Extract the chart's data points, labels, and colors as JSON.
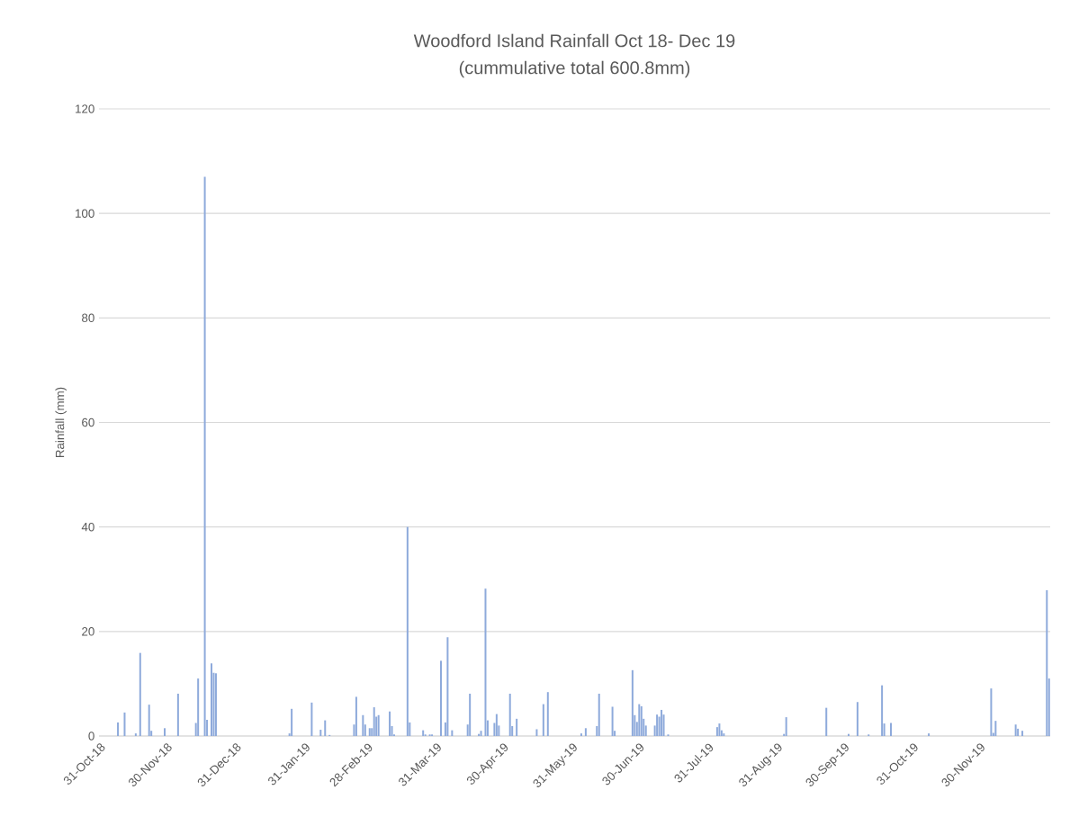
{
  "chart_data": {
    "type": "bar",
    "title": "Woodford Island Rainfall Oct 18- Dec 19",
    "subtitle": "(cummulative total 600.8mm)",
    "ylabel": "Rainfall (mm)",
    "xlim": [
      "2018-10-30T12:00",
      "2019-12-31T12:00"
    ],
    "xticks": [
      {
        "value": "2018-10-31",
        "label": "31-Oct-18"
      },
      {
        "value": "2018-11-30",
        "label": "30-Nov-18"
      },
      {
        "value": "2018-12-31",
        "label": "31-Dec-18"
      },
      {
        "value": "2019-01-31",
        "label": "31-Jan-19"
      },
      {
        "value": "2019-02-28",
        "label": "28-Feb-19"
      },
      {
        "value": "2019-03-31",
        "label": "31-Mar-19"
      },
      {
        "value": "2019-04-30",
        "label": "30-Apr-19"
      },
      {
        "value": "2019-05-31",
        "label": "31-May-19"
      },
      {
        "value": "2019-06-30",
        "label": "30-Jun-19"
      },
      {
        "value": "2019-07-31",
        "label": "31-Jul-19"
      },
      {
        "value": "2019-08-31",
        "label": "31-Aug-19"
      },
      {
        "value": "2019-09-30",
        "label": "30-Sep-19"
      },
      {
        "value": "2019-10-31",
        "label": "31-Oct-19"
      },
      {
        "value": "2019-11-30",
        "label": "30-Nov-19"
      }
    ],
    "ylim": [
      0,
      120
    ],
    "yticks": [
      0,
      20,
      40,
      60,
      80,
      100,
      120
    ],
    "grid": "y",
    "color": "#8eaadb",
    "x": [
      "2018-11-08",
      "2018-11-11",
      "2018-11-16",
      "2018-11-18",
      "2018-11-22",
      "2018-11-23",
      "2018-11-29",
      "2018-12-05",
      "2018-12-13",
      "2018-12-14",
      "2018-12-17",
      "2018-12-18",
      "2018-12-20",
      "2018-12-21",
      "2018-12-22",
      "2019-01-24",
      "2019-01-25",
      "2019-02-03",
      "2019-02-07",
      "2019-02-09",
      "2019-02-11",
      "2019-02-22",
      "2019-02-23",
      "2019-02-26",
      "2019-02-27",
      "2019-03-01",
      "2019-03-02",
      "2019-03-03",
      "2019-03-04",
      "2019-03-05",
      "2019-03-10",
      "2019-03-11",
      "2019-03-12",
      "2019-03-18",
      "2019-03-19",
      "2019-03-25",
      "2019-03-26",
      "2019-03-28",
      "2019-03-29",
      "2019-04-02",
      "2019-04-04",
      "2019-04-05",
      "2019-04-07",
      "2019-04-14",
      "2019-04-15",
      "2019-04-19",
      "2019-04-20",
      "2019-04-22",
      "2019-04-23",
      "2019-04-26",
      "2019-04-27",
      "2019-04-28",
      "2019-05-03",
      "2019-05-04",
      "2019-05-06",
      "2019-05-15",
      "2019-05-18",
      "2019-05-20",
      "2019-06-04",
      "2019-06-06",
      "2019-06-11",
      "2019-06-12",
      "2019-06-18",
      "2019-06-19",
      "2019-06-27",
      "2019-06-28",
      "2019-06-29",
      "2019-06-30",
      "2019-07-01",
      "2019-07-02",
      "2019-07-03",
      "2019-07-07",
      "2019-07-08",
      "2019-07-09",
      "2019-07-10",
      "2019-07-11",
      "2019-07-13",
      "2019-08-04",
      "2019-08-05",
      "2019-08-06",
      "2019-08-07",
      "2019-09-03",
      "2019-09-04",
      "2019-09-22",
      "2019-10-02",
      "2019-10-06",
      "2019-10-11",
      "2019-10-17",
      "2019-10-18",
      "2019-10-21",
      "2019-11-07",
      "2019-12-05",
      "2019-12-06",
      "2019-12-07",
      "2019-12-16",
      "2019-12-17",
      "2019-12-19",
      "2019-12-30",
      "2019-12-31"
    ],
    "values": [
      2.6,
      4.5,
      0.5,
      15.9,
      6.0,
      1.0,
      1.5,
      8.1,
      2.5,
      11.0,
      107,
      3.1,
      13.9,
      12.1,
      12.0,
      0.5,
      5.2,
      6.4,
      1.2,
      3.0,
      0.2,
      2.2,
      7.5,
      4.0,
      2.2,
      1.5,
      1.5,
      5.5,
      3.7,
      4.0,
      4.7,
      1.9,
      0.3,
      40,
      2.6,
      1.1,
      0.3,
      0.3,
      0.3,
      14.4,
      2.6,
      18.9,
      1.1,
      2.2,
      8.1,
      0.4,
      1.0,
      28.2,
      3.0,
      2.5,
      4.2,
      2.0,
      8.1,
      1.9,
      3.3,
      1.3,
      6.1,
      8.4,
      0.5,
      1.5,
      1.9,
      8.1,
      5.6,
      1.0,
      12.6,
      4.0,
      2.7,
      6.1,
      5.7,
      3.3,
      2.0,
      2.0,
      4.1,
      3.7,
      5.0,
      4.1,
      0.3,
      1.7,
      2.4,
      1.1,
      0.5,
      0.4,
      3.6,
      5.4,
      0.4,
      6.5,
      0.3,
      9.7,
      2.4,
      2.5,
      0.5,
      9.1,
      0.6,
      2.9,
      2.2,
      1.4,
      1.0,
      27.9,
      11.0
    ]
  }
}
